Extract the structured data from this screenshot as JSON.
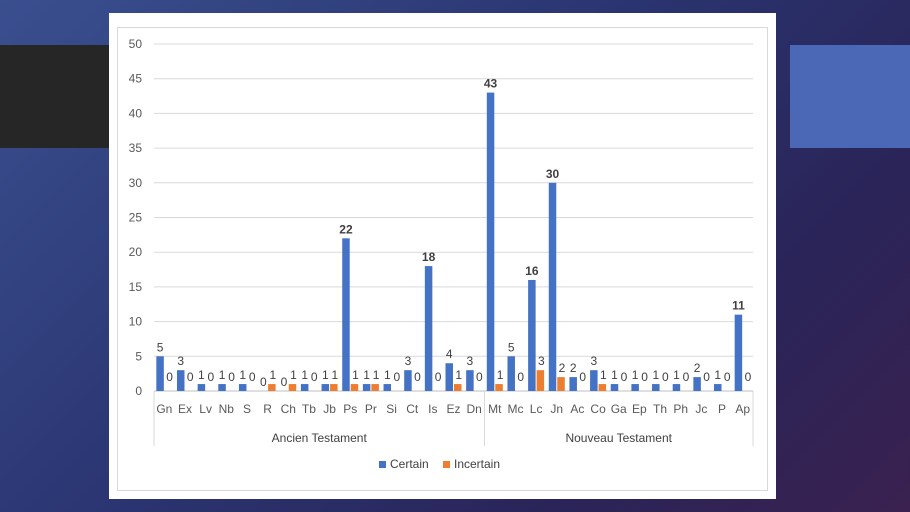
{
  "theme": {
    "certain_color": "#4472c4",
    "incertain_color": "#ed7d31"
  },
  "chart_data": {
    "type": "bar",
    "ylim": [
      0,
      50
    ],
    "yticks": [
      0,
      5,
      10,
      15,
      20,
      25,
      30,
      35,
      40,
      45,
      50
    ],
    "grid": true,
    "legend_position": "bottom",
    "categories": [
      "Gn",
      "Ex",
      "Lv",
      "Nb",
      "S",
      "R",
      "Ch",
      "Tb",
      "Jb",
      "Ps",
      "Pr",
      "Si",
      "Ct",
      "Is",
      "Ez",
      "Dn",
      "Mt",
      "Mc",
      "Lc",
      "Jn",
      "Ac",
      "Co",
      "Ga",
      "Ep",
      "Th",
      "Ph",
      "Jc",
      "P",
      "Ap"
    ],
    "groups": [
      {
        "label": "Ancien Testament",
        "start": 0,
        "end": 15
      },
      {
        "label": "Nouveau Testament",
        "start": 16,
        "end": 28
      }
    ],
    "series": [
      {
        "name": "Certain",
        "color": "#4472c4",
        "values": [
          5,
          3,
          1,
          1,
          1,
          0,
          0,
          1,
          1,
          22,
          1,
          1,
          3,
          18,
          4,
          3,
          43,
          5,
          16,
          30,
          2,
          3,
          1,
          1,
          1,
          1,
          2,
          1,
          11
        ]
      },
      {
        "name": "Incertain",
        "color": "#ed7d31",
        "values": [
          0,
          0,
          0,
          0,
          0,
          1,
          1,
          0,
          1,
          1,
          1,
          0,
          0,
          0,
          1,
          0,
          1,
          0,
          3,
          2,
          0,
          1,
          0,
          0,
          0,
          0,
          0,
          0,
          0
        ]
      }
    ]
  }
}
